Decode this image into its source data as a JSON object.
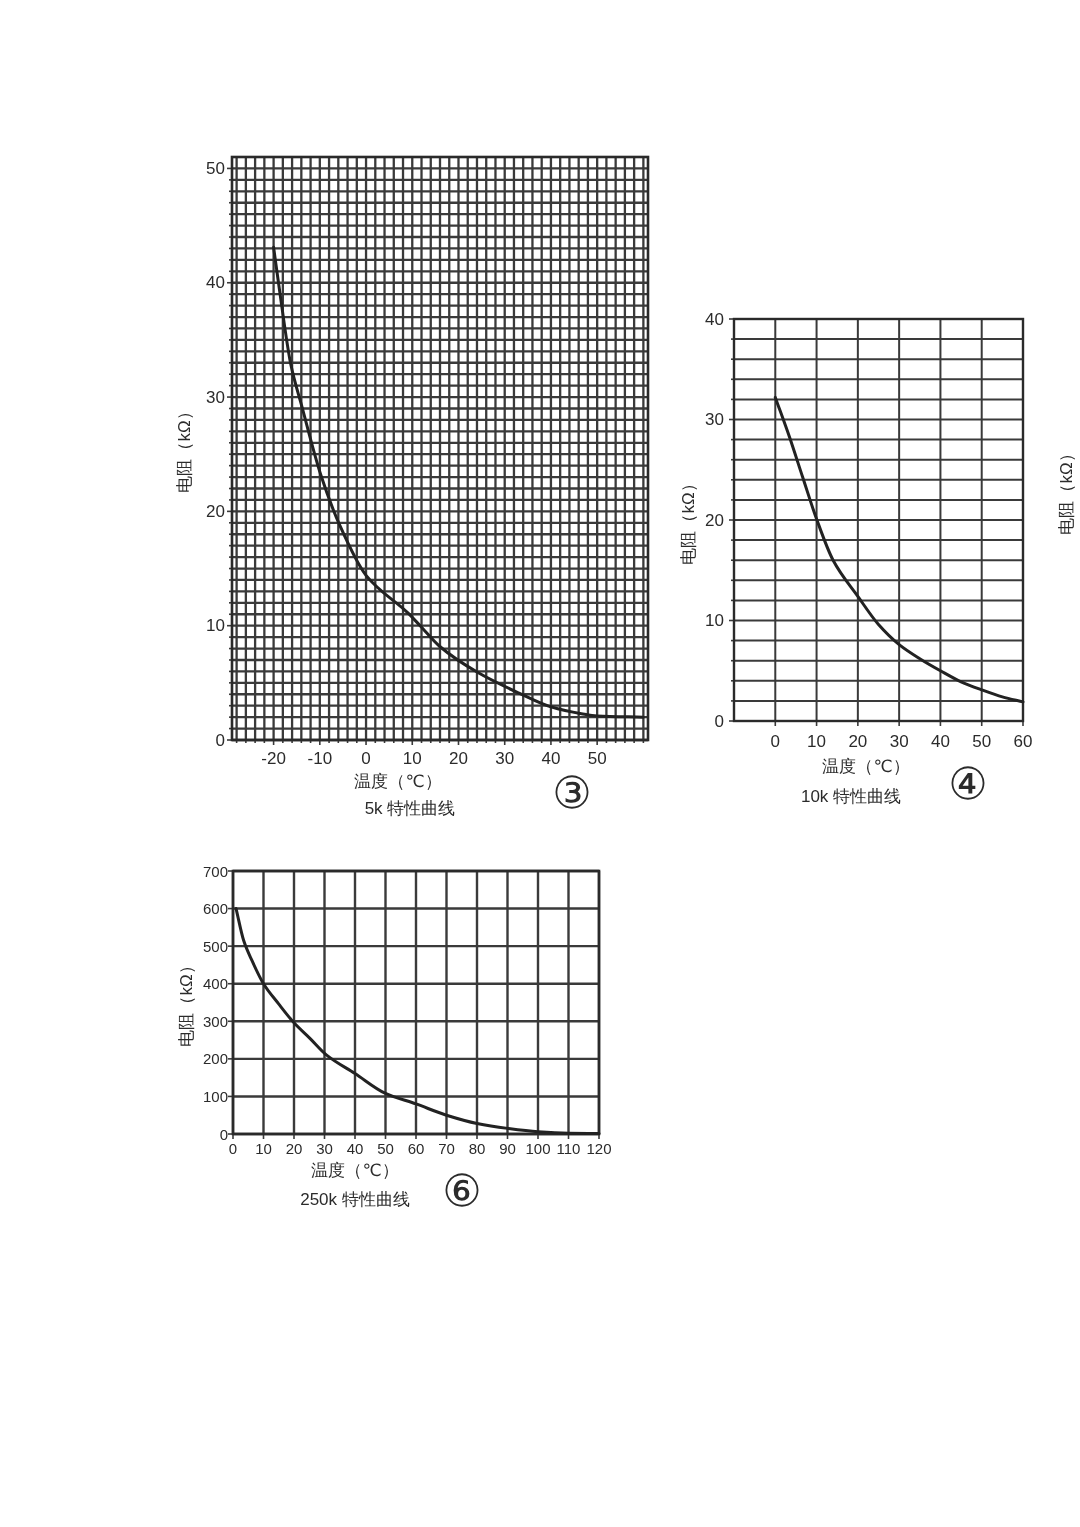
{
  "chart_data": [
    {
      "type": "line",
      "title": "5k 特性曲线",
      "xlabel": "温度（℃）",
      "ylabel": "电阻（kΩ）",
      "annotations": [
        "③"
      ],
      "grid": true,
      "xlim": [
        -29,
        61
      ],
      "ylim": [
        0,
        51
      ],
      "xticks": [
        {
          "value": -28,
          "label": null
        },
        {
          "value": -26,
          "label": null
        },
        {
          "value": -24,
          "label": null
        },
        {
          "value": -22,
          "label": null
        },
        -20,
        {
          "value": -18,
          "label": null
        },
        {
          "value": -16,
          "label": null
        },
        {
          "value": -14,
          "label": null
        },
        {
          "value": -12,
          "label": null
        },
        -10,
        {
          "value": -8,
          "label": null
        },
        {
          "value": -6,
          "label": null
        },
        {
          "value": -4,
          "label": null
        },
        {
          "value": -2,
          "label": null
        },
        0,
        {
          "value": 2,
          "label": null
        },
        {
          "value": 4,
          "label": null
        },
        {
          "value": 6,
          "label": null
        },
        {
          "value": 8,
          "label": null
        },
        10,
        {
          "value": 12,
          "label": null
        },
        {
          "value": 14,
          "label": null
        },
        {
          "value": 16,
          "label": null
        },
        {
          "value": 18,
          "label": null
        },
        20,
        {
          "value": 22,
          "label": null
        },
        {
          "value": 24,
          "label": null
        },
        {
          "value": 26,
          "label": null
        },
        {
          "value": 28,
          "label": null
        },
        30,
        {
          "value": 32,
          "label": null
        },
        {
          "value": 34,
          "label": null
        },
        {
          "value": 36,
          "label": null
        },
        {
          "value": 38,
          "label": null
        },
        40,
        {
          "value": 42,
          "label": null
        },
        {
          "value": 44,
          "label": null
        },
        {
          "value": 46,
          "label": null
        },
        {
          "value": 48,
          "label": null
        },
        50,
        {
          "value": 52,
          "label": null
        },
        {
          "value": 54,
          "label": null
        },
        {
          "value": 56,
          "label": null
        },
        {
          "value": 58,
          "label": null
        },
        {
          "value": 60,
          "label": null
        }
      ],
      "yticks": [
        0,
        {
          "value": 1,
          "label": null
        },
        {
          "value": 2,
          "label": null
        },
        {
          "value": 3,
          "label": null
        },
        {
          "value": 4,
          "label": null
        },
        {
          "value": 5,
          "label": null
        },
        {
          "value": 6,
          "label": null
        },
        {
          "value": 7,
          "label": null
        },
        {
          "value": 8,
          "label": null
        },
        {
          "value": 9,
          "label": null
        },
        10,
        {
          "value": 11,
          "label": null
        },
        {
          "value": 12,
          "label": null
        },
        {
          "value": 13,
          "label": null
        },
        {
          "value": 14,
          "label": null
        },
        {
          "value": 15,
          "label": null
        },
        {
          "value": 16,
          "label": null
        },
        {
          "value": 17,
          "label": null
        },
        {
          "value": 18,
          "label": null
        },
        {
          "value": 19,
          "label": null
        },
        20,
        {
          "value": 21,
          "label": null
        },
        {
          "value": 22,
          "label": null
        },
        {
          "value": 23,
          "label": null
        },
        {
          "value": 24,
          "label": null
        },
        {
          "value": 25,
          "label": null
        },
        {
          "value": 26,
          "label": null
        },
        {
          "value": 27,
          "label": null
        },
        {
          "value": 28,
          "label": null
        },
        {
          "value": 29,
          "label": null
        },
        30,
        {
          "value": 31,
          "label": null
        },
        {
          "value": 32,
          "label": null
        },
        {
          "value": 33,
          "label": null
        },
        {
          "value": 34,
          "label": null
        },
        {
          "value": 35,
          "label": null
        },
        {
          "value": 36,
          "label": null
        },
        {
          "value": 37,
          "label": null
        },
        {
          "value": 38,
          "label": null
        },
        {
          "value": 39,
          "label": null
        },
        40,
        {
          "value": 41,
          "label": null
        },
        {
          "value": 42,
          "label": null
        },
        {
          "value": 43,
          "label": null
        },
        {
          "value": 44,
          "label": null
        },
        {
          "value": 45,
          "label": null
        },
        {
          "value": 46,
          "label": null
        },
        {
          "value": 47,
          "label": null
        },
        {
          "value": 48,
          "label": null
        },
        {
          "value": 49,
          "label": null
        },
        50
      ],
      "x": [
        -20,
        -18.7,
        -16.3,
        -13.9,
        -9.8,
        -5.6,
        0,
        9.1,
        11.7,
        15.9,
        24.2,
        33.1,
        40,
        46.6,
        50,
        60
      ],
      "series": [
        {
          "color": "#222222",
          "values": [
            43.1,
            39.3,
            32.9,
            29.2,
            23.2,
            18.7,
            14.4,
            11.1,
            10.0,
            8.2,
            5.9,
            4.1,
            2.9,
            2.3,
            2.1,
            2.0
          ]
        }
      ]
    },
    {
      "type": "line",
      "title": "10k 特性曲线",
      "xlabel": "温度（℃）",
      "ylabel": "电阻（kΩ）",
      "annotations": [
        "④"
      ],
      "grid": true,
      "xlim": [
        -10,
        60
      ],
      "ylim": [
        0,
        40
      ],
      "xticks": [
        0,
        10,
        20,
        30,
        40,
        50,
        60
      ],
      "yticks": [
        0,
        {
          "value": 2,
          "label": null
        },
        {
          "value": 4,
          "label": null
        },
        {
          "value": 6,
          "label": null
        },
        {
          "value": 8,
          "label": null
        },
        10,
        {
          "value": 12,
          "label": null
        },
        {
          "value": 14,
          "label": null
        },
        {
          "value": 16,
          "label": null
        },
        {
          "value": 18,
          "label": null
        },
        20,
        {
          "value": 22,
          "label": null
        },
        {
          "value": 24,
          "label": null
        },
        {
          "value": 26,
          "label": null
        },
        {
          "value": 28,
          "label": null
        },
        30,
        {
          "value": 32,
          "label": null
        },
        {
          "value": 34,
          "label": null
        },
        {
          "value": 36,
          "label": null
        },
        {
          "value": 38,
          "label": null
        },
        40
      ],
      "x": [
        0,
        3.4,
        6.6,
        10,
        14,
        20,
        25,
        30,
        35,
        40,
        45,
        50,
        55,
        60
      ],
      "series": [
        {
          "color": "#222222",
          "values": [
            32.2,
            28.3,
            24.3,
            20.1,
            16.0,
            12.4,
            9.6,
            7.6,
            6.2,
            5.0,
            3.9,
            3.1,
            2.4,
            1.9
          ]
        }
      ]
    },
    {
      "type": "line",
      "title": "250k 特性曲线",
      "xlabel": "温度（℃）",
      "ylabel": "电阻（kΩ）",
      "annotations": [
        "⑥"
      ],
      "grid": true,
      "xlim": [
        0,
        120
      ],
      "ylim": [
        0,
        700
      ],
      "xticks": [
        0,
        10,
        20,
        30,
        40,
        50,
        60,
        70,
        80,
        90,
        100,
        110,
        120
      ],
      "yticks": [
        0,
        100,
        200,
        300,
        400,
        500,
        600,
        700
      ],
      "x": [
        1,
        3.5,
        6.2,
        10,
        14.9,
        20,
        25.3,
        30.7,
        40,
        50,
        60,
        70,
        80,
        90,
        100,
        110,
        120
      ],
      "series": [
        {
          "color": "#222222",
          "values": [
            600,
            515,
            462,
            400,
            347,
            296,
            254,
            210,
            161,
            108,
            80,
            50,
            28,
            15,
            6,
            2,
            1
          ]
        }
      ]
    },
    {
      "type": "other",
      "ylabel": "电阻（kΩ）"
    }
  ]
}
